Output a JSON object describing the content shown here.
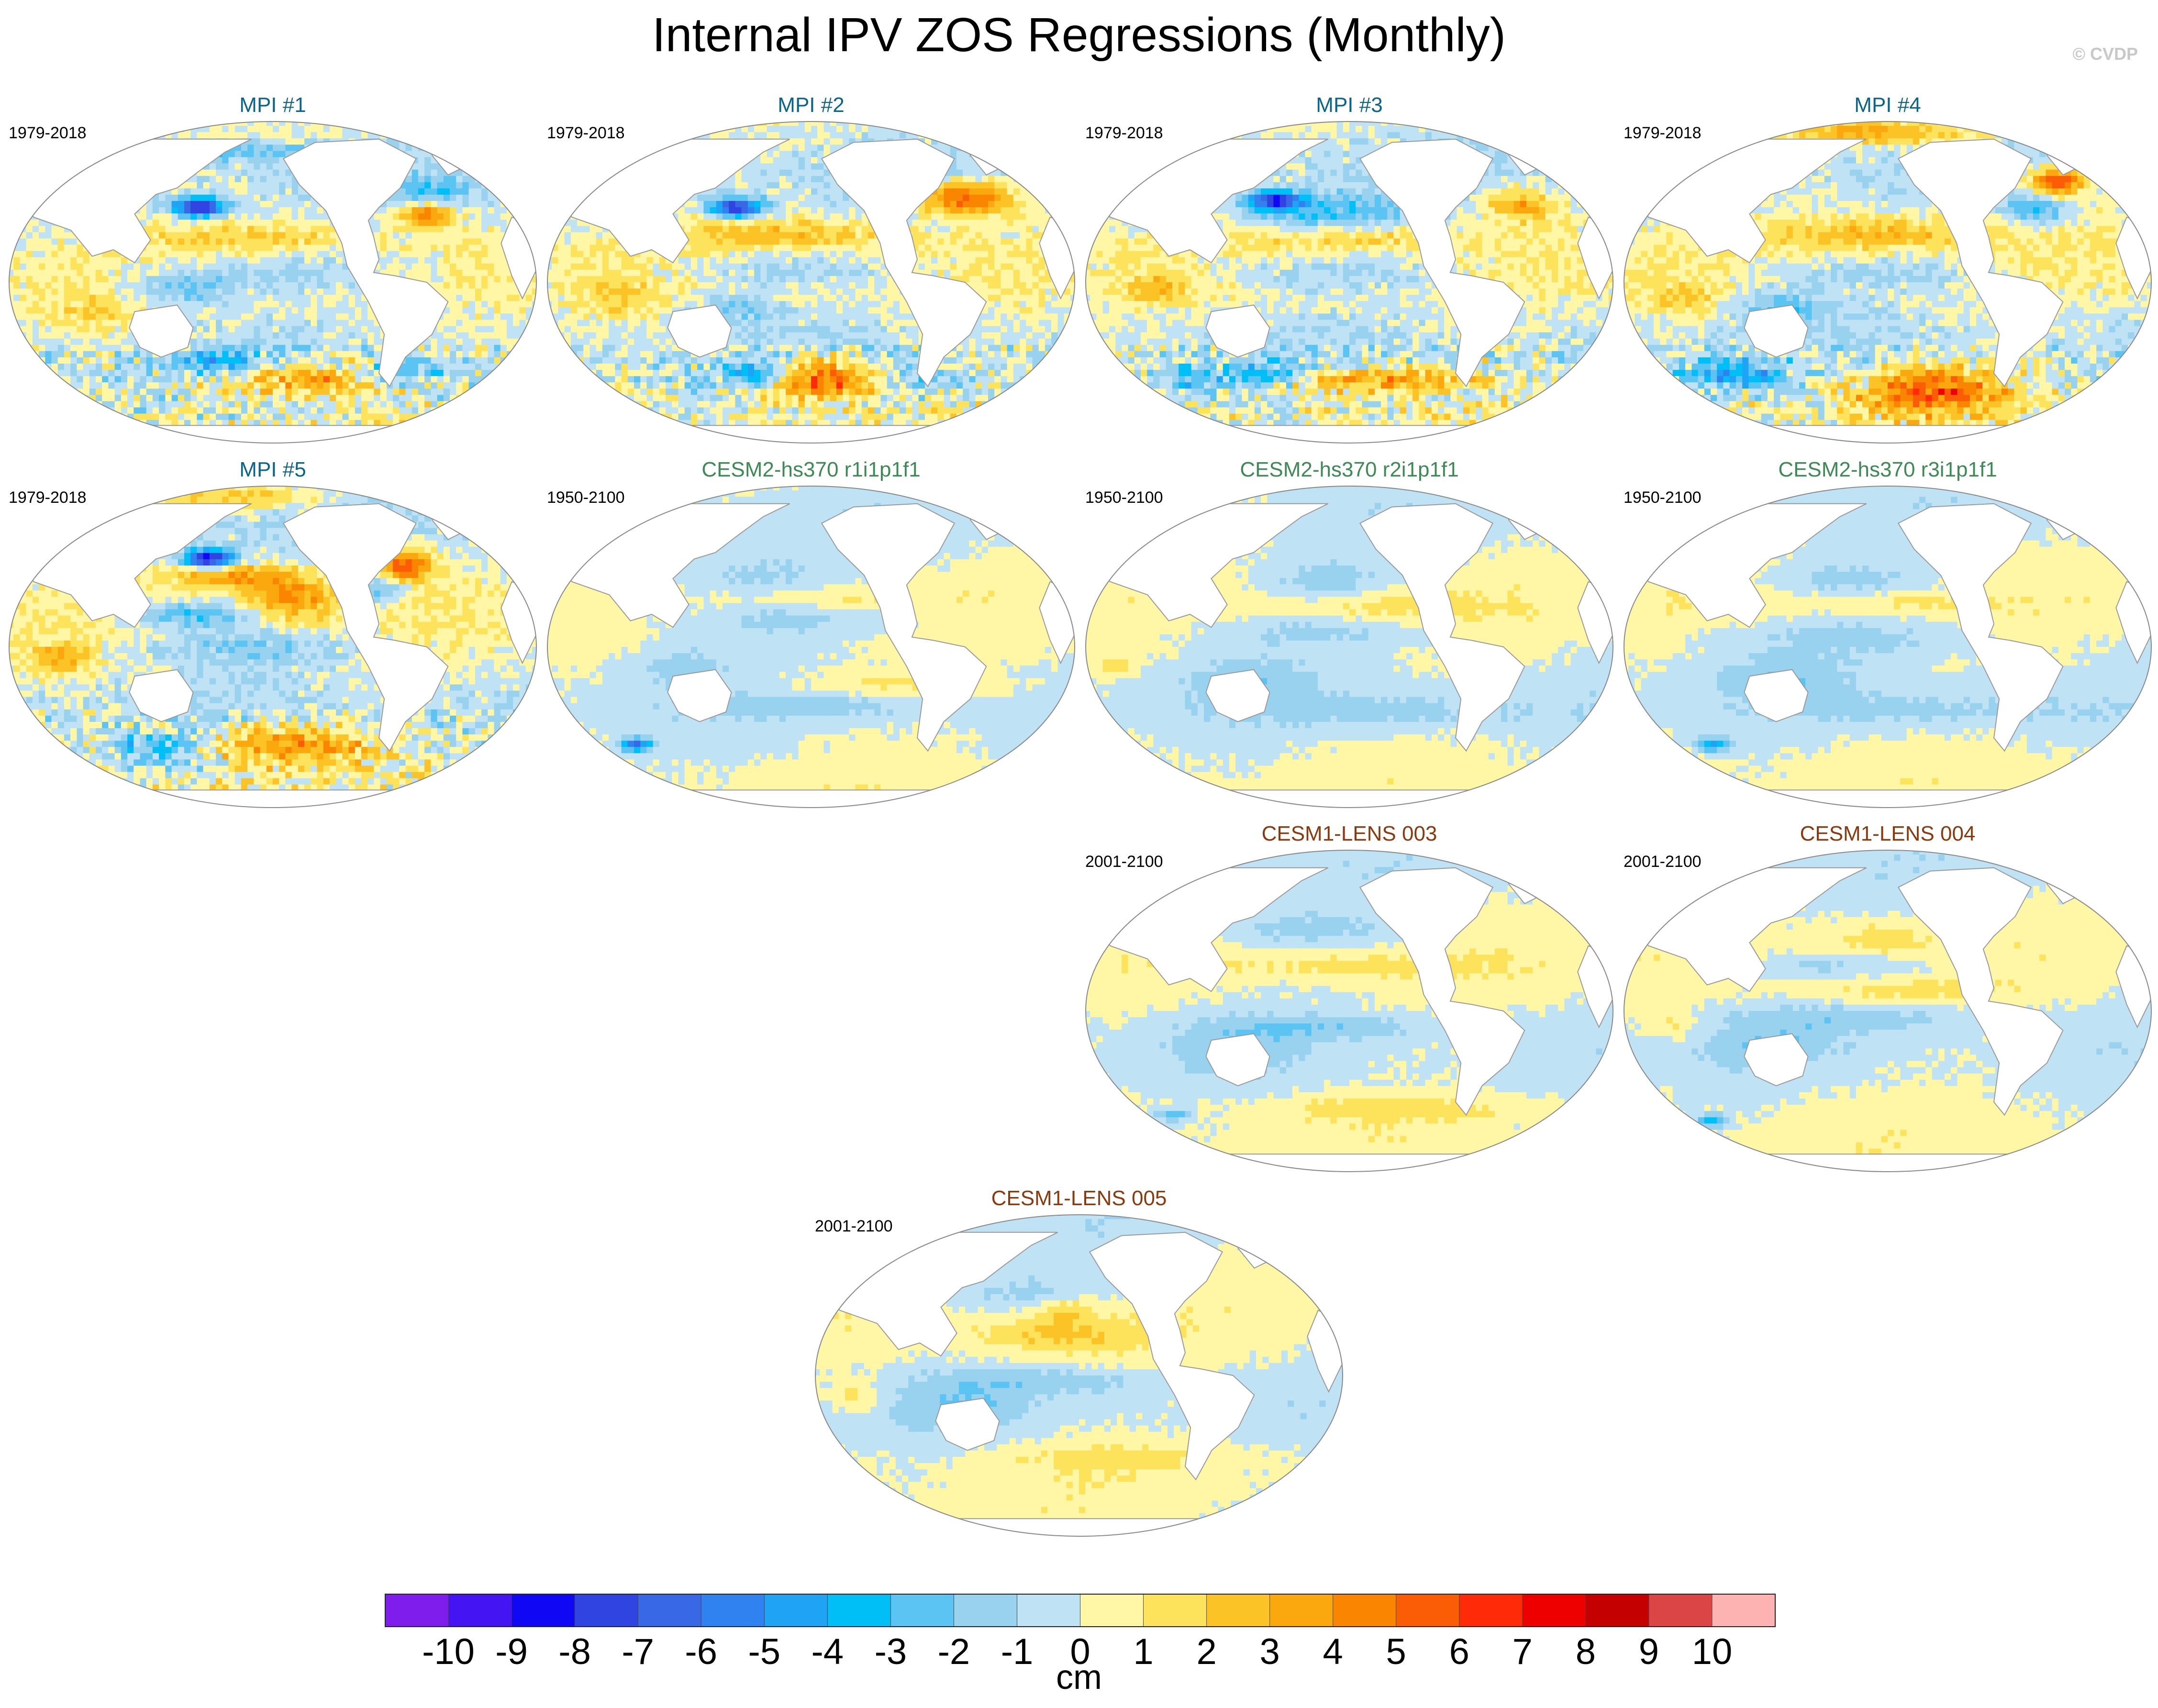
{
  "title": "Internal IPV ZOS Regressions (Monthly)",
  "credit": "© CVDP",
  "colors": {
    "mpi_title": "#0b6586",
    "cesm2_title": "#3d8a55",
    "cesm1_title": "#8b3a0e",
    "land": "#ffffff",
    "coast": "#9a9a9a"
  },
  "panels": [
    {
      "id": "mpi1",
      "title": "MPI #1",
      "period": "1979-2018",
      "group": "mpi",
      "variant": "strong-a"
    },
    {
      "id": "mpi2",
      "title": "MPI #2",
      "period": "1979-2018",
      "group": "mpi",
      "variant": "strong-b"
    },
    {
      "id": "mpi3",
      "title": "MPI #3",
      "period": "1979-2018",
      "group": "mpi",
      "variant": "strong-c"
    },
    {
      "id": "mpi4",
      "title": "MPI #4",
      "period": "1979-2018",
      "group": "mpi",
      "variant": "strong-d"
    },
    {
      "id": "mpi5",
      "title": "MPI #5",
      "period": "1979-2018",
      "group": "mpi",
      "variant": "strong-e"
    },
    {
      "id": "cesm2-r1",
      "title": "CESM2-hs370 r1i1p1f1",
      "period": "1950-2100",
      "group": "cesm2",
      "variant": "weak-a"
    },
    {
      "id": "cesm2-r2",
      "title": "CESM2-hs370 r2i1p1f1",
      "period": "1950-2100",
      "group": "cesm2",
      "variant": "weak-b"
    },
    {
      "id": "cesm2-r3",
      "title": "CESM2-hs370 r3i1p1f1",
      "period": "1950-2100",
      "group": "cesm2",
      "variant": "weak-c"
    },
    {
      "id": "lens003",
      "title": "CESM1-LENS 003",
      "period": "2001-2100",
      "group": "cesm1",
      "variant": "weak-d"
    },
    {
      "id": "lens004",
      "title": "CESM1-LENS 004",
      "period": "2001-2100",
      "group": "cesm1",
      "variant": "weak-e"
    },
    {
      "id": "lens005",
      "title": "CESM1-LENS 005",
      "period": "2001-2100",
      "group": "cesm1",
      "variant": "weak-f"
    }
  ],
  "chart_data": {
    "type": "heatmap",
    "title": "Internal IPV ZOS Regressions (Monthly)",
    "projection": "Robinson-like global ocean maps (Pacific-centred)",
    "units": "cm",
    "levels": [
      -10,
      -9,
      -8,
      -7,
      -6,
      -5,
      -4,
      -3,
      -2,
      -1,
      0,
      1,
      2,
      3,
      4,
      5,
      6,
      7,
      8,
      9,
      10
    ],
    "tick_labels": [
      "-10",
      "-9",
      "-8",
      "-7",
      "-6",
      "-5",
      "-4",
      "-3",
      "-2",
      "-1",
      "0",
      "1",
      "2",
      "3",
      "4",
      "5",
      "6",
      "7",
      "8",
      "9",
      "10"
    ],
    "colors": [
      "#7f1ded",
      "#4514f3",
      "#1008f4",
      "#2f44e0",
      "#3868e6",
      "#2f82f0",
      "#1fa3f5",
      "#00bff7",
      "#5bc4f2",
      "#98d2ef",
      "#bfe2f5",
      "#fff7a6",
      "#fde35c",
      "#fbc326",
      "#faa80e",
      "#fa8500",
      "#fb5d06",
      "#ff2a08",
      "#ee0000",
      "#c40000",
      "#dc4545",
      "#fcb3b1"
    ],
    "colorbar_position": "bottom"
  }
}
